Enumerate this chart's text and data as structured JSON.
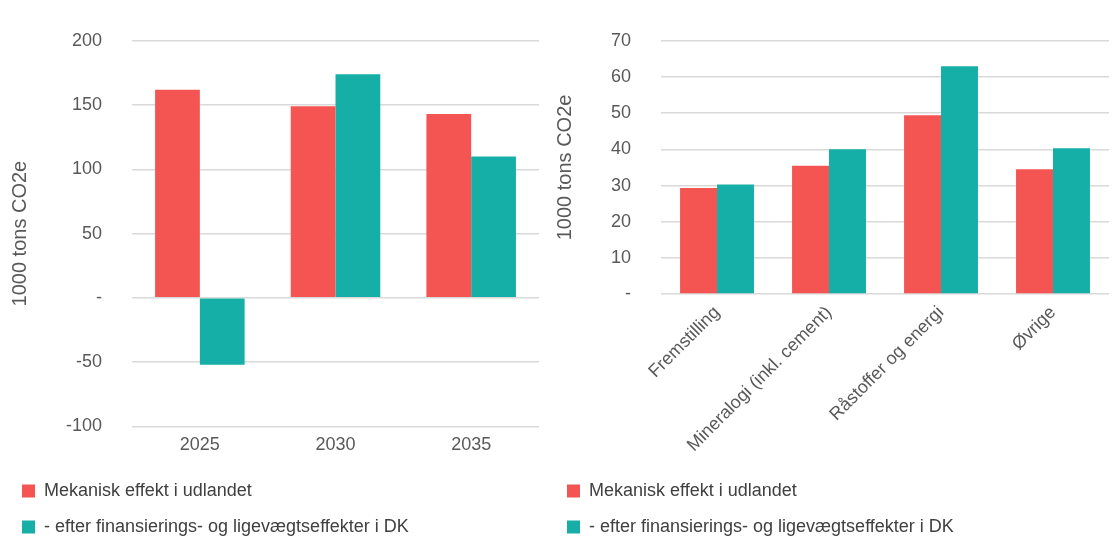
{
  "chart_data": [
    {
      "type": "bar",
      "ylabel": "1000 tons CO2e",
      "categories": [
        "2025",
        "2030",
        "2035"
      ],
      "series": [
        {
          "name": "Mekanisk effekt i udlandet",
          "color": "#f45552",
          "values": [
            162,
            149,
            143
          ]
        },
        {
          "name": "- efter finansierings- og ligevægtseffekter i DK",
          "color": "#16afa8",
          "values": [
            -52,
            174,
            110
          ]
        }
      ],
      "ylim": [
        -100,
        200
      ],
      "yticks": [
        {
          "value": -100,
          "label": "-100"
        },
        {
          "value": -50,
          "label": "-50"
        },
        {
          "value": 0,
          "label": "-"
        },
        50,
        100,
        150,
        200
      ],
      "grid": "y",
      "legend": "bottom"
    },
    {
      "type": "bar",
      "ylabel": "1000 tons CO2e",
      "categories": [
        "Fremstilling",
        "Mineralogi (inkl. cement)",
        "Råstoffer og energi",
        "Øvrige"
      ],
      "series": [
        {
          "name": "Mekanisk effekt i udlandet",
          "color": "#f45552",
          "values": [
            29.3,
            35.5,
            49.4,
            34.5
          ]
        },
        {
          "name": "- efter finansierings- og ligevægtseffekter i DK",
          "color": "#16afa8",
          "values": [
            30.3,
            40,
            63,
            40.3
          ]
        }
      ],
      "ylim": [
        0,
        70
      ],
      "yticks": [
        {
          "value": 0,
          "label": "-"
        },
        10,
        20,
        30,
        40,
        50,
        60,
        70
      ],
      "grid": "y",
      "legend": "bottom"
    }
  ]
}
